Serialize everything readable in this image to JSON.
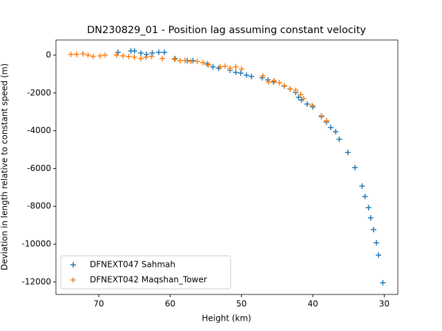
{
  "chart_data": {
    "type": "scatter",
    "title": "DN230829_01 - Position lag assuming constant velocity",
    "xlabel": "Height (km)",
    "ylabel": "Deviation in length relative to constant speed (m)",
    "xlim": [
      76.0,
      28.1
    ],
    "ylim": [
      -12660,
      800
    ],
    "xticks": [
      70,
      60,
      50,
      40,
      30
    ],
    "yticks": [
      0,
      -2000,
      -4000,
      -6000,
      -8000,
      -10000,
      -12000
    ],
    "legend": "lower left",
    "series": [
      {
        "name": "DFNEXT047 Sahmah",
        "color": "#1f77b4",
        "x": [
          67.3,
          65.5,
          65.0,
          64.1,
          63.3,
          62.5,
          61.6,
          60.8,
          59.3,
          57.6,
          56.8,
          54.8,
          54.0,
          53.2,
          51.6,
          50.8,
          50.1,
          49.3,
          48.6,
          47.1,
          46.3,
          45.5,
          44.0,
          43.2,
          42.4,
          42.0,
          41.6,
          40.8,
          40.0,
          38.8,
          38.1,
          37.5,
          36.8,
          36.3,
          35.1,
          34.1,
          33.1,
          32.7,
          32.2,
          31.9,
          31.5,
          31.1,
          30.8,
          30.2
        ],
        "values": [
          150,
          220,
          220,
          110,
          40,
          110,
          150,
          150,
          -180,
          -290,
          -290,
          -470,
          -620,
          -690,
          -800,
          -910,
          -950,
          -1060,
          -1130,
          -1200,
          -1310,
          -1420,
          -1640,
          -1790,
          -1970,
          -2230,
          -2370,
          -2590,
          -2740,
          -3250,
          -3540,
          -3830,
          -4050,
          -4450,
          -5150,
          -5950,
          -6930,
          -7480,
          -8070,
          -8610,
          -9230,
          -9930,
          -10580,
          -12040
        ]
      },
      {
        "name": "DFNEXT042 Maqshan_Tower",
        "color": "#ff7f0e",
        "x": [
          73.9,
          73.1,
          72.2,
          71.5,
          70.8,
          69.8,
          69.1,
          67.5,
          66.6,
          65.8,
          65.0,
          64.1,
          63.4,
          62.6,
          61.1,
          59.4,
          58.6,
          57.9,
          57.1,
          56.2,
          55.4,
          54.6,
          53.0,
          52.3,
          51.6,
          50.8,
          50.0,
          47.0,
          46.2,
          45.4,
          44.7,
          44.0,
          43.2,
          42.4,
          41.7,
          41.3,
          40.1,
          38.8,
          38.1
        ],
        "values": [
          40,
          40,
          70,
          0,
          -70,
          -40,
          0,
          0,
          -40,
          -70,
          -110,
          -180,
          -110,
          -70,
          -180,
          -220,
          -290,
          -290,
          -330,
          -330,
          -400,
          -510,
          -620,
          -580,
          -690,
          -620,
          -730,
          -1090,
          -1420,
          -1350,
          -1460,
          -1610,
          -1790,
          -1860,
          -2080,
          -2300,
          -2660,
          -3210,
          -3470
        ]
      }
    ]
  }
}
